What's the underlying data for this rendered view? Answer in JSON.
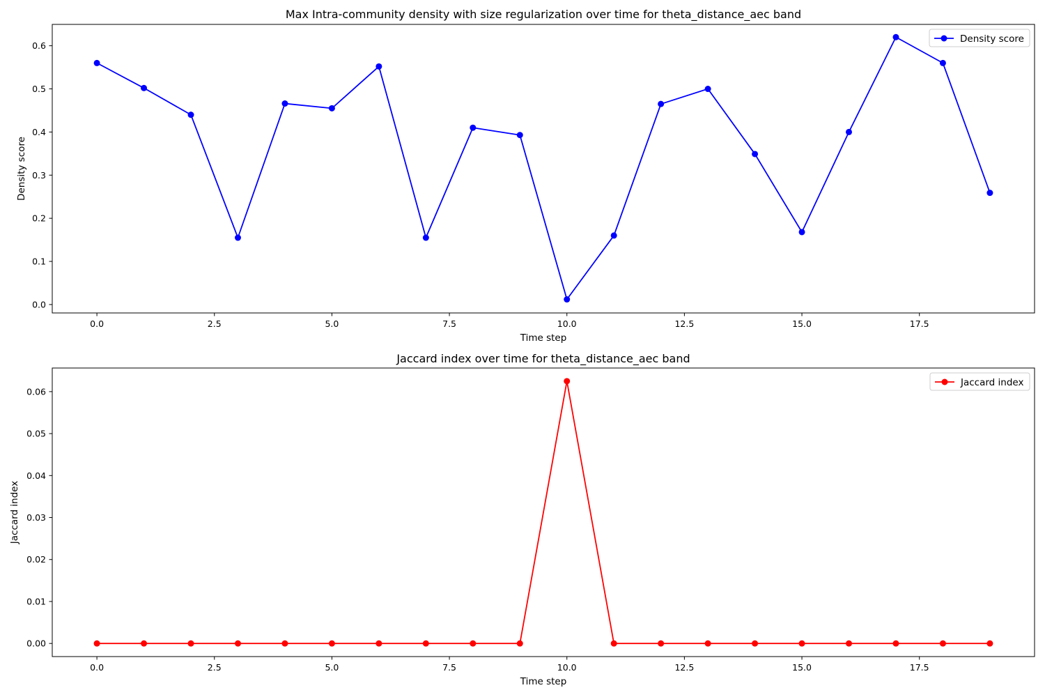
{
  "chart_data": [
    {
      "type": "line",
      "title": "Max Intra-community density with size regularization over time for theta_distance_aec band",
      "xlabel": "Time step",
      "ylabel": "Density score",
      "xlim": [
        -0.95,
        19.95
      ],
      "ylim": [
        -0.0195,
        0.6495
      ],
      "xticks": [
        0.0,
        2.5,
        5.0,
        7.5,
        10.0,
        12.5,
        15.0,
        17.5
      ],
      "xtick_labels": [
        "0.0",
        "2.5",
        "5.0",
        "7.5",
        "10.0",
        "12.5",
        "15.0",
        "17.5"
      ],
      "yticks": [
        0.0,
        0.1,
        0.2,
        0.3,
        0.4,
        0.5,
        0.6
      ],
      "ytick_labels": [
        "0.0",
        "0.1",
        "0.2",
        "0.3",
        "0.4",
        "0.5",
        "0.6"
      ],
      "grid": false,
      "legend": "top-right",
      "series": [
        {
          "name": "Density score",
          "color": "#0000ff",
          "marker": "circle",
          "x": [
            0,
            1,
            2,
            3,
            4,
            5,
            6,
            7,
            8,
            9,
            10,
            11,
            12,
            13,
            14,
            15,
            16,
            17,
            18,
            19
          ],
          "y": [
            0.56,
            0.502,
            0.44,
            0.155,
            0.466,
            0.455,
            0.552,
            0.155,
            0.41,
            0.393,
            0.012,
            0.16,
            0.465,
            0.5,
            0.349,
            0.168,
            0.4,
            0.62,
            0.56,
            0.259
          ]
        }
      ]
    },
    {
      "type": "line",
      "title": "Jaccard index over time for theta_distance_aec band",
      "xlabel": "Time step",
      "ylabel": "Jaccard index",
      "xlim": [
        -0.95,
        19.95
      ],
      "ylim": [
        -0.003125,
        0.065625
      ],
      "xticks": [
        0.0,
        2.5,
        5.0,
        7.5,
        10.0,
        12.5,
        15.0,
        17.5
      ],
      "xtick_labels": [
        "0.0",
        "2.5",
        "5.0",
        "7.5",
        "10.0",
        "12.5",
        "15.0",
        "17.5"
      ],
      "yticks": [
        0.0,
        0.01,
        0.02,
        0.03,
        0.04,
        0.05,
        0.06
      ],
      "ytick_labels": [
        "0.00",
        "0.01",
        "0.02",
        "0.03",
        "0.04",
        "0.05",
        "0.06"
      ],
      "grid": false,
      "legend": "top-right",
      "series": [
        {
          "name": "Jaccard index",
          "color": "#ff0000",
          "marker": "circle",
          "x": [
            0,
            1,
            2,
            3,
            4,
            5,
            6,
            7,
            8,
            9,
            10,
            11,
            12,
            13,
            14,
            15,
            16,
            17,
            18,
            19
          ],
          "y": [
            0,
            0,
            0,
            0,
            0,
            0,
            0,
            0,
            0,
            0,
            0.0625,
            0,
            0,
            0,
            0,
            0,
            0,
            0,
            0,
            0
          ]
        }
      ]
    }
  ]
}
